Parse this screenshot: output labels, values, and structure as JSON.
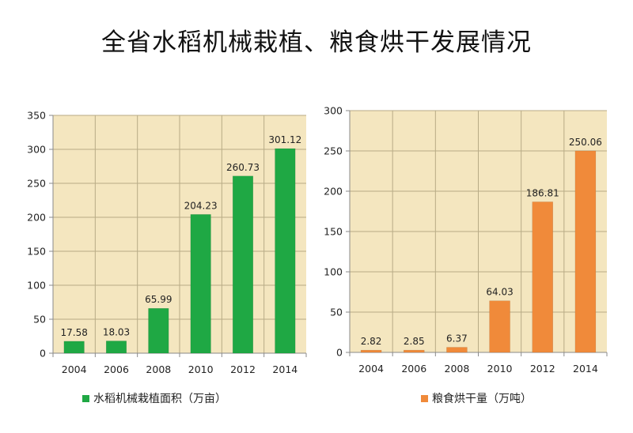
{
  "page": {
    "title": "全省水稻机械栽植、粮食烘干发展情况"
  },
  "chart_data": [
    {
      "type": "bar",
      "title": "",
      "categories": [
        "2004",
        "2006",
        "2008",
        "2010",
        "2012",
        "2014"
      ],
      "series": [
        {
          "name": "水稻机械栽植面积（万亩）",
          "values": [
            17.58,
            18.03,
            65.99,
            204.23,
            260.73,
            301.12
          ],
          "color": "#1fa844"
        }
      ],
      "ylim": [
        0,
        350
      ],
      "yticks": [
        0,
        50,
        100,
        150,
        200,
        250,
        300,
        350
      ],
      "grid": true,
      "legend": "bottom",
      "plot_background": "#f4e6bf"
    },
    {
      "type": "bar",
      "title": "",
      "categories": [
        "2004",
        "2006",
        "2008",
        "2010",
        "2012",
        "2014"
      ],
      "series": [
        {
          "name": "粮食烘干量（万吨）",
          "values": [
            2.82,
            2.85,
            6.37,
            64.03,
            186.81,
            250.06
          ],
          "color": "#f08a3a"
        }
      ],
      "ylim": [
        0,
        300
      ],
      "yticks": [
        0,
        50,
        100,
        150,
        200,
        250,
        300
      ],
      "grid": true,
      "legend": "bottom",
      "plot_background": "#f4e6bf"
    }
  ]
}
